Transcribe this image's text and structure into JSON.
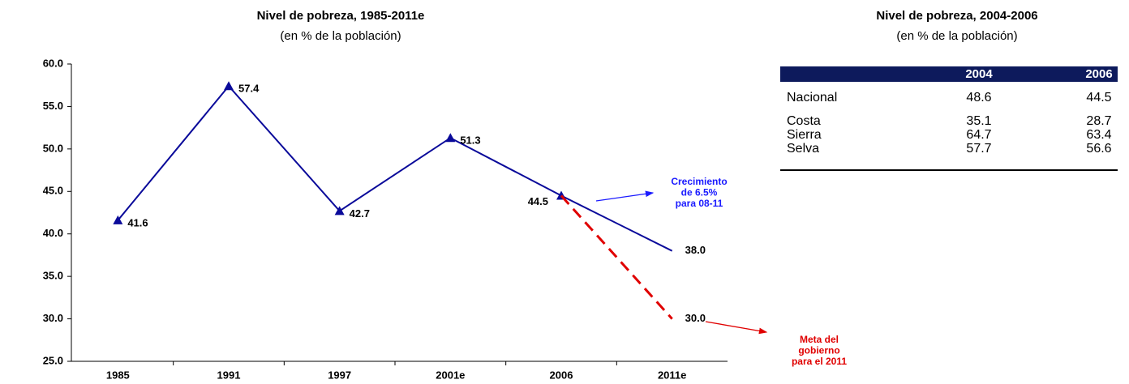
{
  "chart_data": {
    "type": "line",
    "title": "Nivel de pobreza, 1985-2011e",
    "subtitle": "(en % de la población)",
    "categories": [
      "1985",
      "1991",
      "1997",
      "2001e",
      "2006",
      "2011e"
    ],
    "series": [
      {
        "color": "#0a0a9a",
        "dash": false,
        "values": [
          41.6,
          57.4,
          42.7,
          51.3,
          44.5,
          38.0
        ],
        "value_labels": [
          "41.6",
          "57.4",
          "42.7",
          "51.3",
          "44.5",
          "38.0"
        ]
      },
      {
        "color": "#e00000",
        "dash": true,
        "values": [
          null,
          null,
          null,
          null,
          44.5,
          30.0
        ],
        "value_labels": [
          null,
          null,
          null,
          null,
          null,
          "30.0"
        ]
      }
    ],
    "ylim": [
      25,
      60
    ],
    "yticks": [
      {
        "value": 25,
        "label": "25.0"
      },
      {
        "value": 30,
        "label": "30.0"
      },
      {
        "value": 35,
        "label": "35.0"
      },
      {
        "value": 40,
        "label": "40.0"
      },
      {
        "value": 45,
        "label": "45.0"
      },
      {
        "value": 50,
        "label": "50.0"
      },
      {
        "value": 55,
        "label": "55.0"
      },
      {
        "value": 60,
        "label": "60.0"
      }
    ],
    "grid": false,
    "annotations": [
      {
        "color": "#1a1aff",
        "lines": [
          "Crecimiento",
          "de 6.5%",
          "para 08-11"
        ]
      },
      {
        "color": "#e00000",
        "lines": [
          "Meta del",
          "gobierno",
          "para el 2011"
        ]
      }
    ]
  },
  "table": {
    "title": "Nivel de pobreza, 2004-2006",
    "subtitle": "(en % de la población)",
    "header": [
      "2004",
      "2006"
    ],
    "rows": [
      [
        "Nacional",
        48.6,
        44.5
      ],
      [
        "Costa",
        35.1,
        28.7
      ],
      [
        "Sierra",
        64.7,
        63.4
      ],
      [
        "Selva",
        57.7,
        56.6
      ]
    ]
  }
}
